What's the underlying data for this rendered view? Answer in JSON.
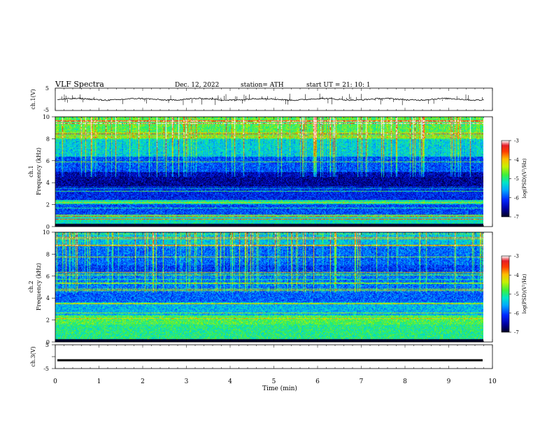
{
  "header": {
    "title": "VLF  Spectra",
    "date": "Dec. 12, 2022",
    "station": "station= ATH",
    "start": "start  UT  =    21: 10: 1"
  },
  "chart_data": [
    {
      "type": "line",
      "panel": "ch1-waveform",
      "ylabel": "ch.1(V)",
      "ylim": [
        -5,
        5
      ],
      "yticks": [
        "5",
        "-5"
      ],
      "xlim": [
        0,
        10
      ],
      "series": [
        {
          "values_note_level": 0,
          "baseline_v": 0.0,
          "noise_v": 0.4
        }
      ]
    },
    {
      "type": "heatmap",
      "panel": "ch1-spectrogram",
      "ylabel": "ch.1\nFrequency  (kHz)",
      "ylim": [
        0,
        10
      ],
      "yticks": [
        "0",
        "2",
        "4",
        "6",
        "8",
        "10"
      ],
      "xlim": [
        0,
        9.8
      ],
      "colorbar": {
        "label": "log(PSD)(V²/Hz)",
        "range": [
          -7,
          -3
        ],
        "ticks": [
          "-3",
          "-4",
          "-5",
          "-6",
          "-7"
        ]
      },
      "bands_khz": [
        {
          "from": 0.0,
          "to": 0.25,
          "level": -7.0
        },
        {
          "from": 0.25,
          "to": 1.0,
          "level": -5.2
        },
        {
          "from": 1.0,
          "to": 2.0,
          "level": -6.0
        },
        {
          "from": 2.0,
          "to": 2.4,
          "level": -5.1
        },
        {
          "from": 2.4,
          "to": 3.4,
          "level": -6.2
        },
        {
          "from": 3.4,
          "to": 5.0,
          "level": -6.6
        },
        {
          "from": 5.0,
          "to": 6.4,
          "level": -6.1
        },
        {
          "from": 6.4,
          "to": 8.0,
          "level": -5.5
        },
        {
          "from": 8.0,
          "to": 10.0,
          "level": -5.0
        }
      ]
    },
    {
      "type": "heatmap",
      "panel": "ch2-spectrogram",
      "ylabel": "ch.2\nFrequency  (kHz)",
      "ylim": [
        0,
        10
      ],
      "yticks": [
        "0",
        "2",
        "4",
        "6",
        "8",
        "10"
      ],
      "xlim": [
        0,
        9.8
      ],
      "colorbar": {
        "label": "log(PSD)(V²/Hz)",
        "range": [
          -7,
          -3
        ],
        "ticks": [
          "-3",
          "-4",
          "-5",
          "-6",
          "-7"
        ]
      },
      "bands_khz": [
        {
          "from": 0.0,
          "to": 0.25,
          "level": -7.0
        },
        {
          "from": 0.25,
          "to": 1.6,
          "level": -5.0
        },
        {
          "from": 1.6,
          "to": 2.4,
          "level": -4.8
        },
        {
          "from": 2.4,
          "to": 3.6,
          "level": -5.5
        },
        {
          "from": 3.6,
          "to": 6.2,
          "level": -5.9
        },
        {
          "from": 6.2,
          "to": 7.0,
          "level": -6.2
        },
        {
          "from": 7.0,
          "to": 8.8,
          "level": -6.0
        },
        {
          "from": 8.8,
          "to": 10.0,
          "level": -5.6
        }
      ]
    },
    {
      "type": "line",
      "panel": "ch3-waveform",
      "ylabel": "ch.3(V)",
      "ylim": [
        -5,
        5
      ],
      "yticks": [
        "5",
        "0",
        "-5"
      ],
      "xlabel": "Time  (min)",
      "xlim": [
        0,
        10
      ],
      "xticks": [
        "0",
        "1",
        "2",
        "3",
        "4",
        "5",
        "6",
        "7",
        "8",
        "9",
        "10"
      ],
      "series": [
        {
          "baseline_v": -1.5,
          "noise_v": 0.05
        }
      ]
    }
  ]
}
